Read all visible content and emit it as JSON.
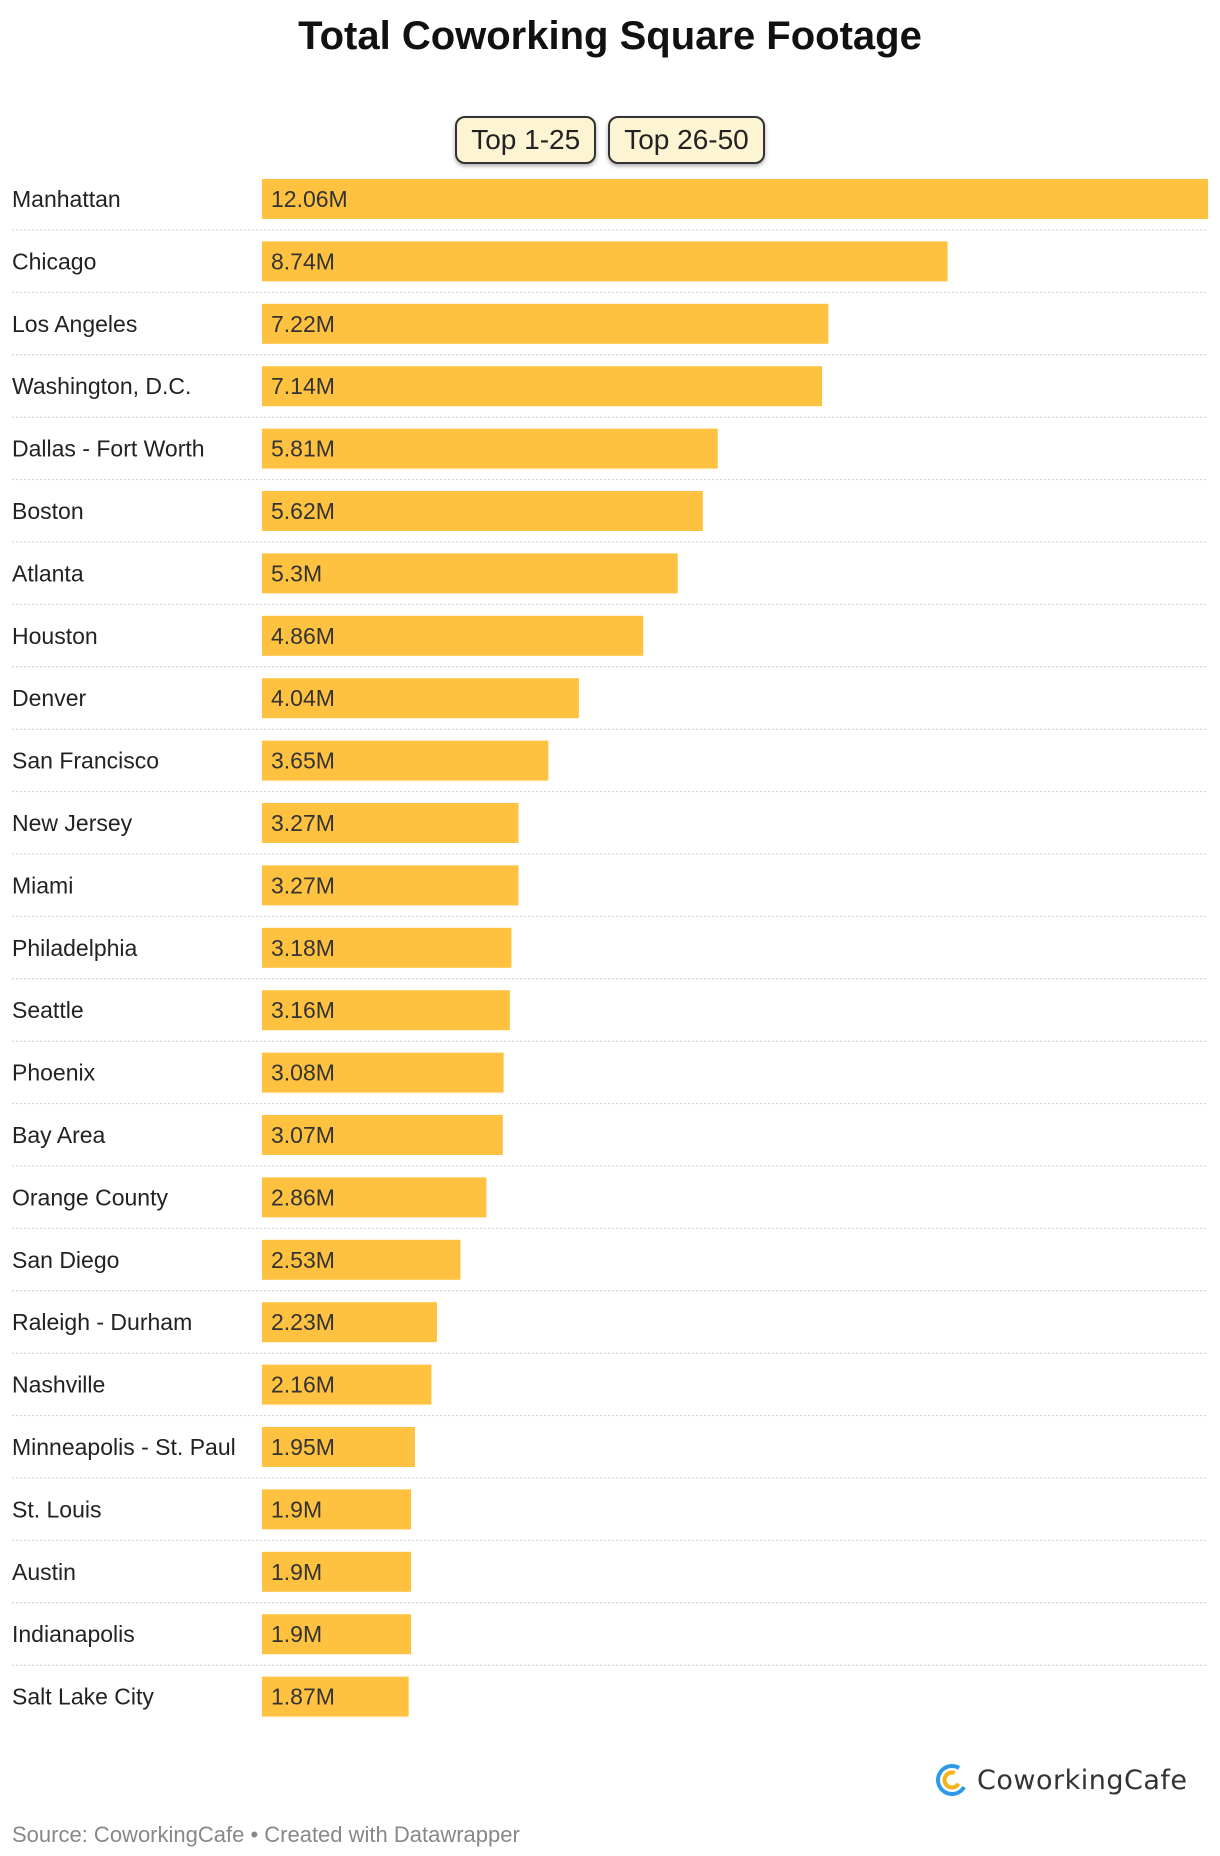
{
  "title": "Total Coworking Square Footage",
  "tabs": [
    {
      "label": "Top 1-25"
    },
    {
      "label": "Top 26-50"
    }
  ],
  "bar_color": "#ffc240",
  "gridline_color": "#cccccc",
  "chart_data": {
    "type": "bar",
    "orientation": "horizontal",
    "categories": [
      "Manhattan",
      "Chicago",
      "Los Angeles",
      "Washington, D.C.",
      "Dallas - Fort Worth",
      "Boston",
      "Atlanta",
      "Houston",
      "Denver",
      "San Francisco",
      "New Jersey",
      "Miami",
      "Philadelphia",
      "Seattle",
      "Phoenix",
      "Bay Area",
      "Orange County",
      "San Diego",
      "Raleigh - Durham",
      "Nashville",
      "Minneapolis - St. Paul",
      "St. Louis",
      "Austin",
      "Indianapolis",
      "Salt Lake City"
    ],
    "values": [
      12.06,
      8.74,
      7.22,
      7.14,
      5.81,
      5.62,
      5.3,
      4.86,
      4.04,
      3.65,
      3.27,
      3.27,
      3.18,
      3.16,
      3.08,
      3.07,
      2.86,
      2.53,
      2.23,
      2.16,
      1.95,
      1.9,
      1.9,
      1.9,
      1.87
    ],
    "labels": [
      "12.06M",
      "8.74M",
      "7.22M",
      "7.14M",
      "5.81M",
      "5.62M",
      "5.3M",
      "4.86M",
      "4.04M",
      "3.65M",
      "3.27M",
      "3.27M",
      "3.18M",
      "3.16M",
      "3.08M",
      "3.07M",
      "2.86M",
      "2.53M",
      "2.23M",
      "2.16M",
      "1.95M",
      "1.9M",
      "1.9M",
      "1.9M",
      "1.87M"
    ],
    "unit": "M",
    "xlim": [
      0,
      12.06
    ],
    "grid": false,
    "legend": "none"
  },
  "logo": {
    "text": "CoworkingCafe"
  },
  "footer": {
    "source": "Source: CoworkingCafe • Created with Datawrapper"
  }
}
